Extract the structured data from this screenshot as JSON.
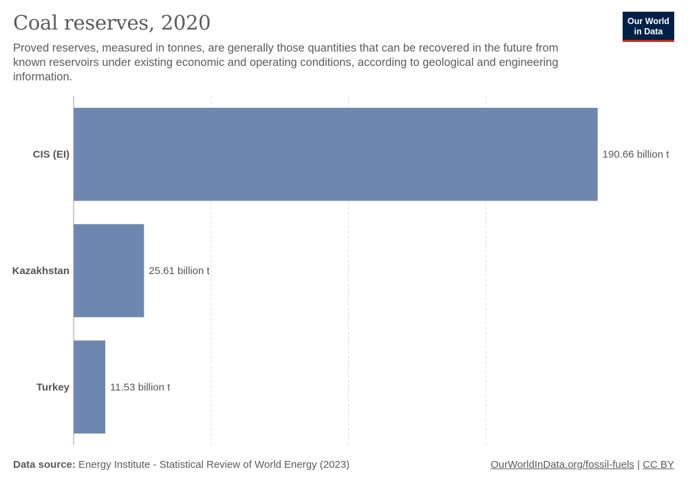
{
  "header": {
    "title": "Coal reserves, 2020",
    "subtitle": "Proved reserves, measured in tonnes, are generally those quantities that can be recovered in the future from known reservoirs under existing economic and operating conditions, according to geological and engineering information."
  },
  "logo": {
    "line1": "Our World",
    "line2": "in Data"
  },
  "footer": {
    "source_label": "Data source:",
    "source_text": "Energy Institute - Statistical Review of World Energy (2023)",
    "link": "OurWorldInData.org/fossil-fuels",
    "separator": "|",
    "license": "CC BY"
  },
  "colors": {
    "bar": "#6d87b0",
    "grid": "#dddddd",
    "axis": "#999999",
    "brand": "#002147",
    "brand_accent": "#ce261e"
  },
  "chart_data": {
    "type": "bar",
    "orientation": "horizontal",
    "title": "Coal reserves, 2020",
    "categories": [
      "CIS (EI)",
      "Kazakhstan",
      "Turkey"
    ],
    "values": [
      190.66,
      25.61,
      11.53
    ],
    "value_labels": [
      "190.66 billion t",
      "25.61 billion t",
      "11.53 billion t"
    ],
    "unit": "billion t",
    "xlim": [
      0,
      200
    ],
    "gridlines_at": [
      50,
      100,
      150
    ],
    "grid": true,
    "legend": "none"
  }
}
